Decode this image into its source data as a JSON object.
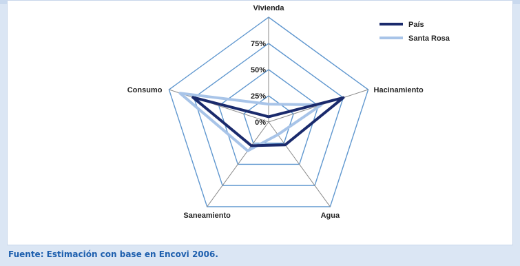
{
  "footer": {
    "source": "Fuente: Estimación con base en Encovi 2006."
  },
  "chart_data": {
    "type": "radar",
    "axes": [
      "Vivienda",
      "Hacinamiento",
      "Agua",
      "Saneamiento",
      "Consumo"
    ],
    "ticks": [
      "0%",
      "25%",
      "50%",
      "75%"
    ],
    "rmax": 100,
    "grid": true,
    "legend_position": "top-right",
    "series": [
      {
        "name": "País",
        "color": "#1a2a6c",
        "values": [
          5,
          75,
          27,
          28,
          76
        ]
      },
      {
        "name": "Santa Rosa",
        "color": "#a8c4e8",
        "values": [
          17,
          53,
          15,
          34,
          89
        ]
      }
    ],
    "colors": {
      "grid": "#5f97cf",
      "spokes": "#8a8a8a",
      "accent": "#1d5fae"
    }
  }
}
